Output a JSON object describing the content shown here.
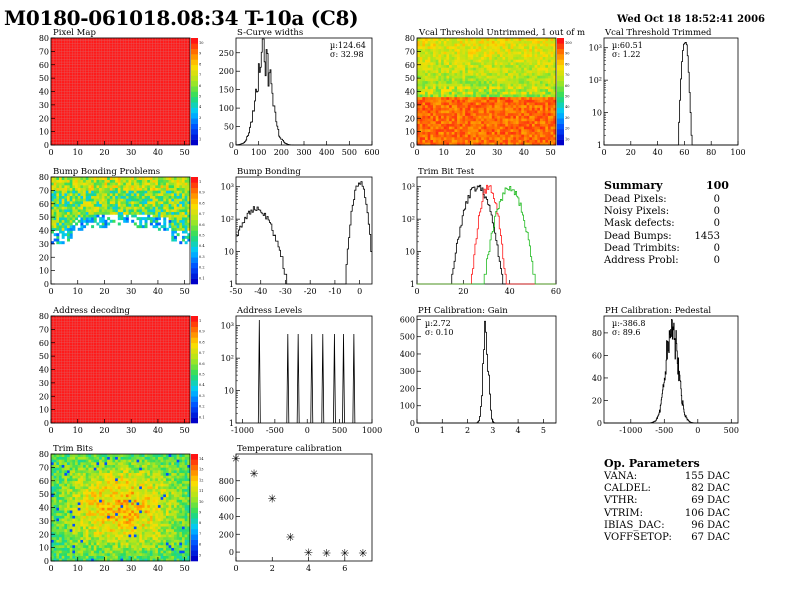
{
  "header": {
    "title": "M0180-061018.08:34 T-10a (C8)",
    "date": "Wed Oct 18 18:52:41 2006"
  },
  "colors": {
    "red": "#ff1a1a",
    "green": "#22bb22",
    "black": "#000000"
  },
  "panels": [
    {
      "id": "pixel-map",
      "title": "Pixel Map",
      "kind": "map",
      "pattern": "uniform",
      "xticks": [
        0,
        10,
        20,
        30,
        40,
        50
      ],
      "yticks": [
        0,
        10,
        20,
        30,
        40,
        50,
        60,
        70,
        80
      ],
      "xlim": [
        0,
        52
      ],
      "ylim": [
        0,
        80
      ],
      "scale_labels": [
        "10",
        "9",
        "8",
        "7",
        "6",
        "5",
        "4",
        "3",
        "2",
        "1"
      ]
    },
    {
      "id": "s-curve-widths",
      "title": "S-Curve widths",
      "kind": "hist",
      "log": false,
      "xticks": [
        0,
        100,
        200,
        300,
        400,
        500,
        600
      ],
      "yticks": [
        0,
        50,
        100,
        150,
        200,
        250
      ],
      "xlim": [
        0,
        600
      ],
      "ylim": [
        0,
        290
      ],
      "stats": [
        "µ:124.64",
        "σ: 32.98"
      ],
      "peaks": [
        {
          "mu": 124,
          "sigma": 33,
          "amp": 255
        }
      ],
      "bimodal": true
    },
    {
      "id": "vcal-untrimmed",
      "title": "Vcal Threshold Untrimmed, 1 out of m",
      "kind": "map",
      "pattern": "vcal",
      "xticks": [
        0,
        10,
        20,
        30,
        40,
        50
      ],
      "yticks": [
        0,
        10,
        20,
        30,
        40,
        50,
        60,
        70,
        80
      ],
      "xlim": [
        0,
        52
      ],
      "ylim": [
        0,
        80
      ],
      "scale_labels": [
        "100",
        "90",
        "80",
        "70",
        "60",
        "50",
        "40",
        "30",
        "20",
        "10"
      ]
    },
    {
      "id": "vcal-trimmed",
      "title": "Vcal Threshold Trimmed",
      "kind": "hist",
      "log": true,
      "xticks": [
        0,
        20,
        40,
        60,
        80,
        100
      ],
      "yticks": [
        "1",
        "10",
        "10²",
        "10³"
      ],
      "xlim": [
        0,
        100
      ],
      "ylim": [
        0,
        3.3
      ],
      "stats": [
        "µ:60.51",
        "σ: 1.22"
      ],
      "peaks": [
        {
          "mu": 60.5,
          "sigma": 1.3,
          "amp": 1800
        }
      ]
    },
    {
      "id": "bump-bonding-problems",
      "title": "Bump Bonding Problems",
      "kind": "map",
      "pattern": "bump",
      "xticks": [
        0,
        10,
        20,
        30,
        40,
        50
      ],
      "yticks": [
        0,
        10,
        20,
        30,
        40,
        50,
        60,
        70,
        80
      ],
      "xlim": [
        0,
        52
      ],
      "ylim": [
        0,
        80
      ],
      "scale_labels": [
        "1",
        "0.9",
        "0.8",
        "0.7",
        "0.6",
        "0.5",
        "0.4",
        "0.3",
        "0.2",
        "0.1"
      ]
    },
    {
      "id": "bump-bonding",
      "title": "Bump Bonding",
      "kind": "hist",
      "log": true,
      "xticks": [
        -50,
        -40,
        -30,
        -20,
        -10,
        0
      ],
      "yticks": [
        "1",
        "10",
        "10²",
        "10³"
      ],
      "xlim": [
        -50,
        5
      ],
      "ylim": [
        0,
        3.3
      ],
      "peaks": [
        {
          "mu": -42,
          "sigma": 4,
          "amp": 200
        },
        {
          "mu": 0,
          "sigma": 1.5,
          "amp": 1500
        }
      ]
    },
    {
      "id": "trim-bit-test",
      "title": "Trim Bit Test",
      "kind": "hist",
      "log": true,
      "xticks": [
        0,
        20,
        40,
        60
      ],
      "yticks": [
        "1",
        "10",
        "10²",
        "10³"
      ],
      "xlim": [
        0,
        60
      ],
      "ylim": [
        0,
        3.3
      ],
      "lines": [
        {
          "color": "black",
          "mu": 26,
          "sigma": 3,
          "amp": 1000
        },
        {
          "color": "red",
          "mu": 31,
          "sigma": 2,
          "amp": 1000
        },
        {
          "color": "green",
          "mu": 40,
          "sigma": 3,
          "amp": 900
        }
      ]
    },
    {
      "id": "address-decoding",
      "title": "Address decoding",
      "kind": "map",
      "pattern": "uniform",
      "xticks": [
        0,
        10,
        20,
        30,
        40,
        50
      ],
      "yticks": [
        0,
        10,
        20,
        30,
        40,
        50,
        60,
        70,
        80
      ],
      "xlim": [
        0,
        52
      ],
      "ylim": [
        0,
        80
      ],
      "scale_labels": [
        "1",
        "0.9",
        "0.8",
        "0.7",
        "0.6",
        "0.5",
        "0.4",
        "0.3",
        "0.2",
        "0.1"
      ]
    },
    {
      "id": "address-levels",
      "title": "Address Levels",
      "kind": "hist",
      "log": true,
      "xticks": [
        -1000,
        -500,
        0,
        500,
        1000
      ],
      "yticks": [
        "1",
        "10",
        "10²",
        "10³"
      ],
      "xlim": [
        -1100,
        1000
      ],
      "ylim": [
        0,
        3.3
      ],
      "spikes": [
        -740,
        -300,
        -140,
        70,
        240,
        420,
        560,
        720
      ]
    },
    {
      "id": "ph-gain",
      "title": "PH Calibration: Gain",
      "kind": "hist",
      "log": false,
      "xticks": [
        0,
        1,
        2,
        3,
        4,
        5
      ],
      "yticks": [
        0,
        100,
        200,
        300,
        400,
        500,
        600
      ],
      "xlim": [
        0,
        5.5
      ],
      "ylim": [
        0,
        620
      ],
      "stats": [
        "µ:2.72",
        "σ: 0.10"
      ],
      "peaks": [
        {
          "mu": 2.72,
          "sigma": 0.1,
          "amp": 560
        }
      ]
    },
    {
      "id": "ph-pedestal",
      "title": "PH Calibration: Pedestal",
      "kind": "hist",
      "log": false,
      "xticks": [
        -1000,
        -500,
        0,
        500
      ],
      "yticks": [
        0,
        20,
        40,
        60,
        80
      ],
      "xlim": [
        -1400,
        600
      ],
      "ylim": [
        0,
        95
      ],
      "stats": [
        "µ:-386.8",
        "σ: 89.6"
      ],
      "peaks": [
        {
          "mu": -387,
          "sigma": 90,
          "amp": 85
        }
      ]
    },
    {
      "id": "trim-bits",
      "title": "Trim Bits",
      "kind": "map",
      "pattern": "trim",
      "xticks": [
        0,
        10,
        20,
        30,
        40,
        50
      ],
      "yticks": [
        0,
        10,
        20,
        30,
        40,
        50,
        60,
        70,
        80
      ],
      "xlim": [
        0,
        52
      ],
      "ylim": [
        0,
        80
      ],
      "scale_labels": [
        "14",
        "13",
        "12",
        "11",
        "10",
        "9",
        "8",
        "7",
        "6",
        "5"
      ]
    },
    {
      "id": "temperature-calibration",
      "title": "Temperature calibration",
      "kind": "scatter",
      "xticks": [
        0,
        2,
        4,
        6
      ],
      "yticks": [
        0,
        200,
        400,
        600,
        800
      ],
      "xlim": [
        0,
        7.5
      ],
      "ylim": [
        -100,
        1100
      ],
      "points": [
        [
          0,
          1050
        ],
        [
          1,
          880
        ],
        [
          2,
          600
        ],
        [
          3,
          170
        ],
        [
          4,
          -5
        ],
        [
          5,
          -10
        ],
        [
          6,
          -10
        ],
        [
          7,
          -10
        ]
      ]
    }
  ],
  "summary": {
    "title": "Summary",
    "total": "100",
    "rows": [
      {
        "label": "Dead Pixels:",
        "value": "0"
      },
      {
        "label": "Noisy Pixels:",
        "value": "0"
      },
      {
        "label": "Mask defects:",
        "value": "0"
      },
      {
        "label": "Dead Bumps:",
        "value": "1453"
      },
      {
        "label": "Dead Trimbits:",
        "value": "0"
      },
      {
        "label": "Address Probl:",
        "value": "0"
      }
    ]
  },
  "op_params": {
    "title": "Op. Parameters",
    "rows": [
      {
        "label": "VANA:",
        "value": "155 DAC"
      },
      {
        "label": "CALDEL:",
        "value": "82 DAC"
      },
      {
        "label": "VTHR:",
        "value": "69 DAC"
      },
      {
        "label": "VTRIM:",
        "value": "106 DAC"
      },
      {
        "label": "IBIAS_DAC:",
        "value": "96 DAC"
      },
      {
        "label": "VOFFSETOP:",
        "value": "67 DAC"
      }
    ]
  }
}
